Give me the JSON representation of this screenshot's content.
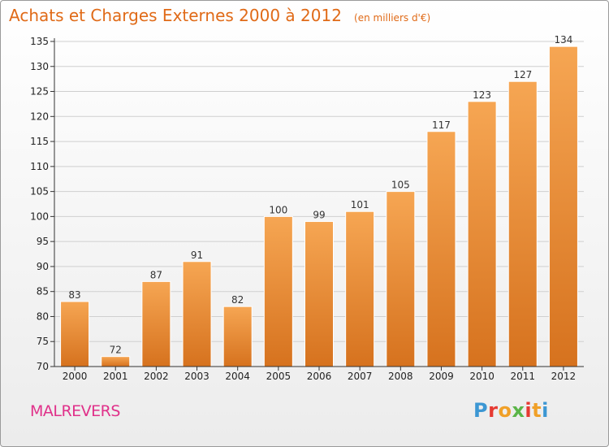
{
  "header": {
    "title": "Achats et Charges Externes 2000 à 2012",
    "unit": "(en milliers d'€)"
  },
  "footer": {
    "commune": "MALREVERS",
    "logo_letters": [
      "P",
      "r",
      "o",
      "x",
      "i",
      "t",
      "i"
    ],
    "logo_colors": [
      "#3c97d3",
      "#e63a32",
      "#f0a028",
      "#5bb548",
      "#e63a32",
      "#f0a028",
      "#3c97d3"
    ]
  },
  "colors": {
    "title": "#e06a17",
    "commune": "#e0318a",
    "bar_light": "#f6a653",
    "bar_dark": "#d6721e",
    "bar_edge": "#ffffff",
    "grid": "#cfcfcf",
    "axis": "#333333"
  },
  "chart_data": {
    "type": "bar",
    "title": "Achats et Charges Externes 2000 à 2012",
    "subtitle": "(en milliers d'€)",
    "xlabel": "",
    "ylabel": "",
    "categories": [
      "2000",
      "2001",
      "2002",
      "2003",
      "2004",
      "2005",
      "2006",
      "2007",
      "2008",
      "2009",
      "2010",
      "2011",
      "2012"
    ],
    "values": [
      83,
      72,
      87,
      91,
      82,
      100,
      99,
      101,
      105,
      117,
      123,
      127,
      134
    ],
    "ylim": [
      70,
      135
    ],
    "yticks": [
      70,
      75,
      80,
      85,
      90,
      95,
      100,
      105,
      110,
      115,
      120,
      125,
      130,
      135
    ],
    "grid": true,
    "legend": "none"
  }
}
